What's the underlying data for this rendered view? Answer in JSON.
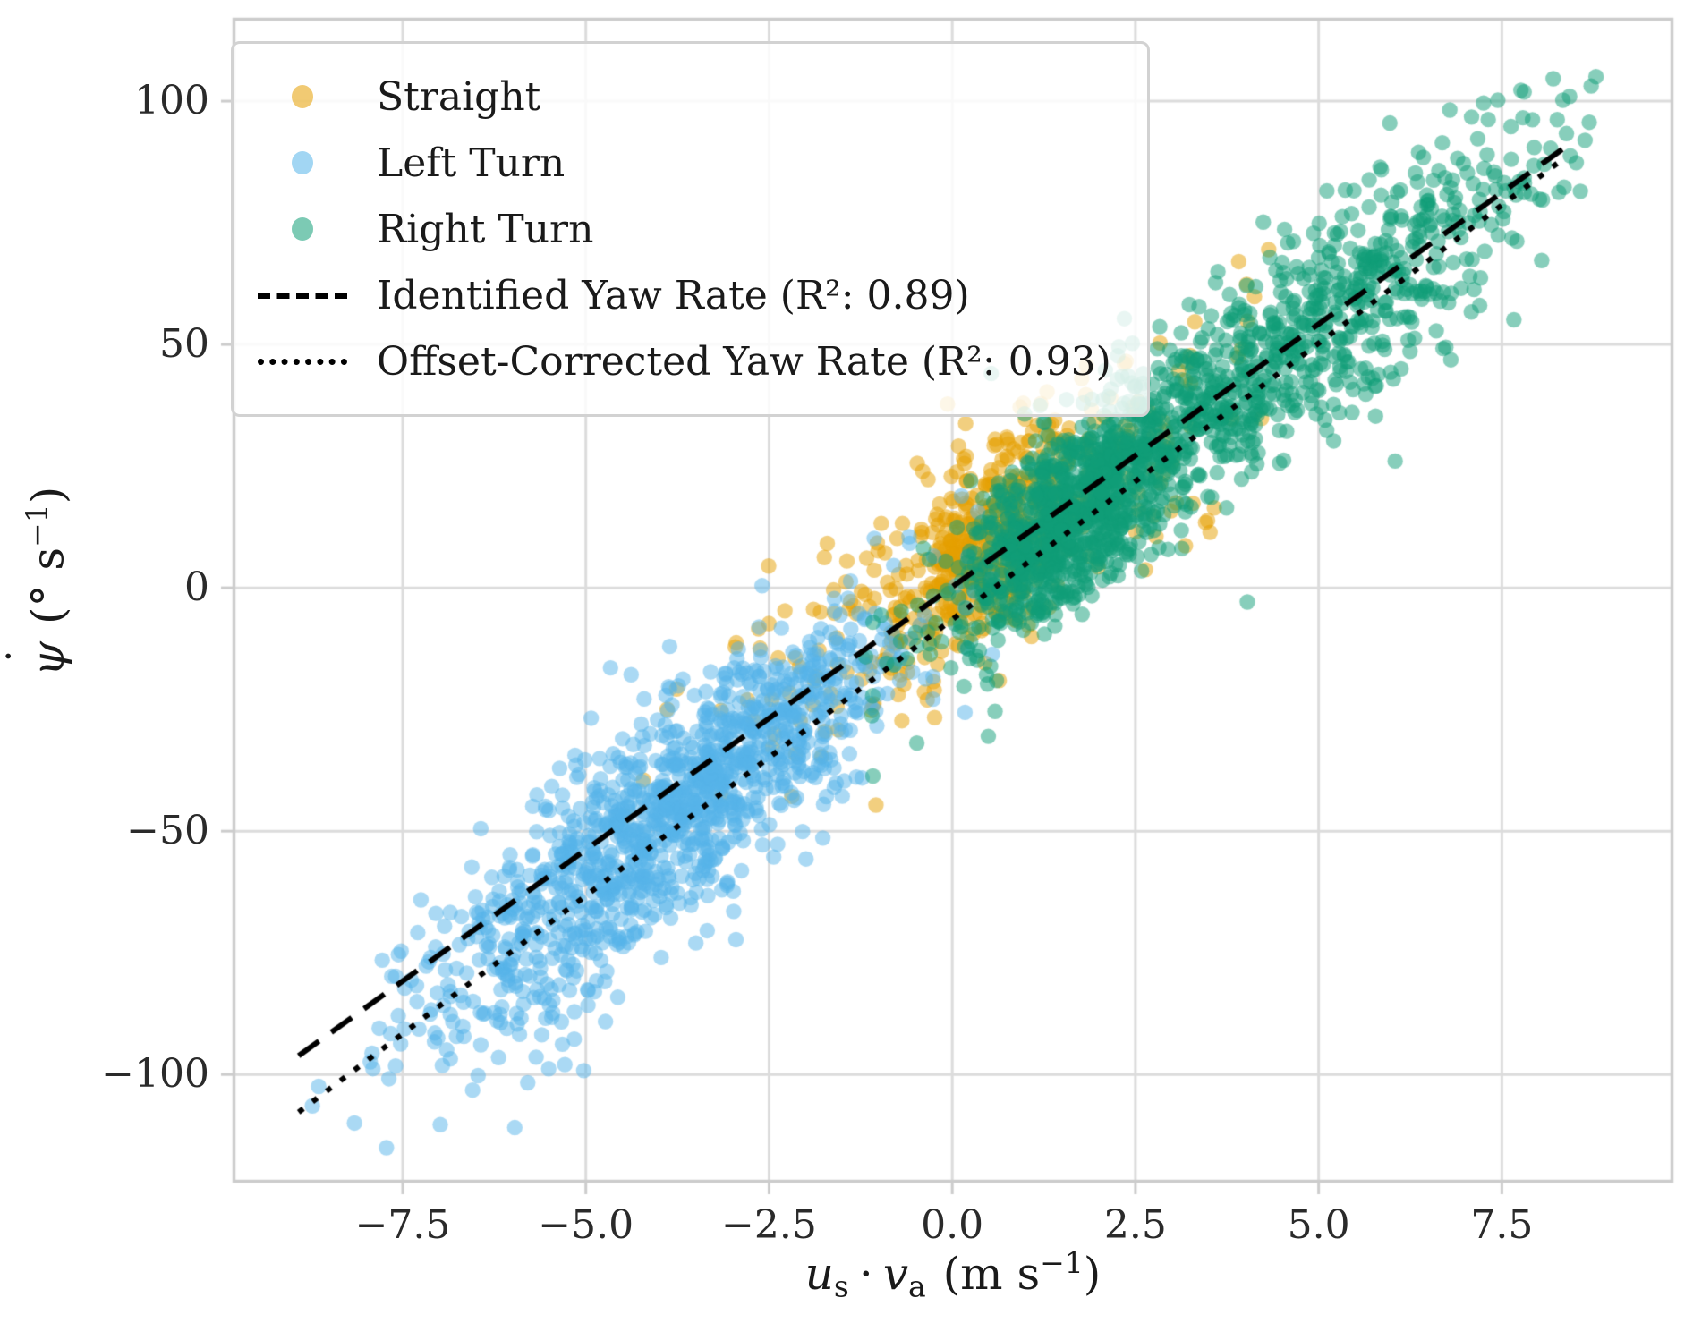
{
  "chart_data": {
    "type": "scatter",
    "title": "",
    "xlabel": "u_s · v_a (m s^-1)",
    "ylabel": "psi-dot (deg s^-1)",
    "xlim": [
      -9.82,
      9.84
    ],
    "ylim": [
      -122.2,
      117.1
    ],
    "grid": true,
    "legend_position": "upper left",
    "x_ticks": [
      {
        "value": -7.5,
        "label": "−7.5"
      },
      {
        "value": -5.0,
        "label": "−5.0"
      },
      {
        "value": -2.5,
        "label": "−2.5"
      },
      {
        "value": 0.0,
        "label": "0.0"
      },
      {
        "value": 2.5,
        "label": "2.5"
      },
      {
        "value": 5.0,
        "label": "5.0"
      },
      {
        "value": 7.5,
        "label": "7.5"
      }
    ],
    "y_ticks": [
      {
        "value": 100,
        "label": "100"
      },
      {
        "value": 50,
        "label": "50"
      },
      {
        "value": 0,
        "label": "0"
      },
      {
        "value": -50,
        "label": "−50"
      },
      {
        "value": -100,
        "label": "−100"
      }
    ],
    "series": [
      {
        "name": "Straight",
        "color": "#E69F00",
        "alpha": 0.5,
        "marker_radius": 8.7,
        "clusters": [
          {
            "n": 380,
            "x_mean": 0.55,
            "x_sd": 0.55,
            "x_min": -1.2,
            "x_max": 2.0,
            "slope": 11.0,
            "offset": 4,
            "y_sd": 8.5
          },
          {
            "n": 300,
            "x_mean": 0.4,
            "x_sd": 1.9,
            "x_min": -4.9,
            "x_max": 4.5,
            "slope": 10.6,
            "offset": 2,
            "y_sd": 13
          }
        ]
      },
      {
        "name": "Left Turn",
        "color": "#56B4E9",
        "alpha": 0.5,
        "marker_radius": 8.7,
        "clusters": [
          {
            "n": 1150,
            "x_mean": -3.7,
            "x_sd": 1.6,
            "x_min": -8.7,
            "x_max": 0.7,
            "slope": 11.1,
            "offset": -4,
            "y_sd": 11
          },
          {
            "n": 130,
            "x_mean": -5.5,
            "x_sd": 1.3,
            "x_min": -8.95,
            "x_max": -2.0,
            "slope": 11.1,
            "offset": -8,
            "y_sd": 16
          }
        ]
      },
      {
        "name": "Right Turn",
        "color": "#109E77",
        "alpha": 0.5,
        "marker_radius": 8.7,
        "clusters": [
          {
            "n": 830,
            "x_mean": 1.75,
            "x_sd": 0.8,
            "x_min": 0.1,
            "x_max": 4.2,
            "slope": 11.0,
            "offset": -3,
            "y_sd": 9
          },
          {
            "n": 850,
            "x_mean": 4.4,
            "x_sd": 1.95,
            "x_min": 0.3,
            "x_max": 8.95,
            "slope": 11.0,
            "offset": -1,
            "y_sd": 11
          },
          {
            "n": 70,
            "x_mean": 0.1,
            "x_sd": 0.8,
            "x_min": -1.5,
            "x_max": 1.5,
            "slope": 11.0,
            "offset": -5,
            "y_sd": 10
          }
        ]
      }
    ],
    "lines": [
      {
        "label": "Identified Yaw Rate (R²: 0.89)",
        "r_squared": 0.89,
        "style": "dashed",
        "color": "#000000",
        "slope": 10.8,
        "intercept": 0.2,
        "x_start": -8.92,
        "x_end": 8.35
      },
      {
        "label": "Offset-Corrected Yaw Rate (R²: 0.93)",
        "r_squared": 0.93,
        "style": "dotted",
        "color": "#000000",
        "slope": 11.35,
        "intercept": -6.5,
        "x_start": -8.92,
        "x_end": 8.35
      }
    ],
    "style": {
      "grid_color": "#dcdcdc",
      "spine_color": "#cccccc",
      "tick_color": "#cccccc",
      "tick_length": 13
    }
  },
  "legend": {
    "items": [
      {
        "label": "Straight",
        "marker": "dot",
        "color": "#E69F00"
      },
      {
        "label": "Left Turn",
        "marker": "dot",
        "color": "#56B4E9"
      },
      {
        "label": "Right Turn",
        "marker": "dot",
        "color": "#109E77"
      },
      {
        "label": "Identified Yaw Rate (R²: 0.89)",
        "marker": "dashed-line",
        "color": "#000000"
      },
      {
        "label": "Offset-Corrected Yaw Rate (R²: 0.93)",
        "marker": "dotted-line",
        "color": "#000000"
      }
    ]
  },
  "axes": {
    "xlabel": {
      "u": "u",
      "u_sub": "s",
      "dot": "·",
      "v": "v",
      "v_sub": "a",
      "unit_pre": "(m s",
      "unit_sup": "−1",
      "unit_close": ")"
    },
    "ylabel": {
      "psi": "ψ",
      "overdot": "˙",
      "unit_pre": "(° s",
      "unit_sup": "−1",
      "unit_close": ")"
    }
  }
}
